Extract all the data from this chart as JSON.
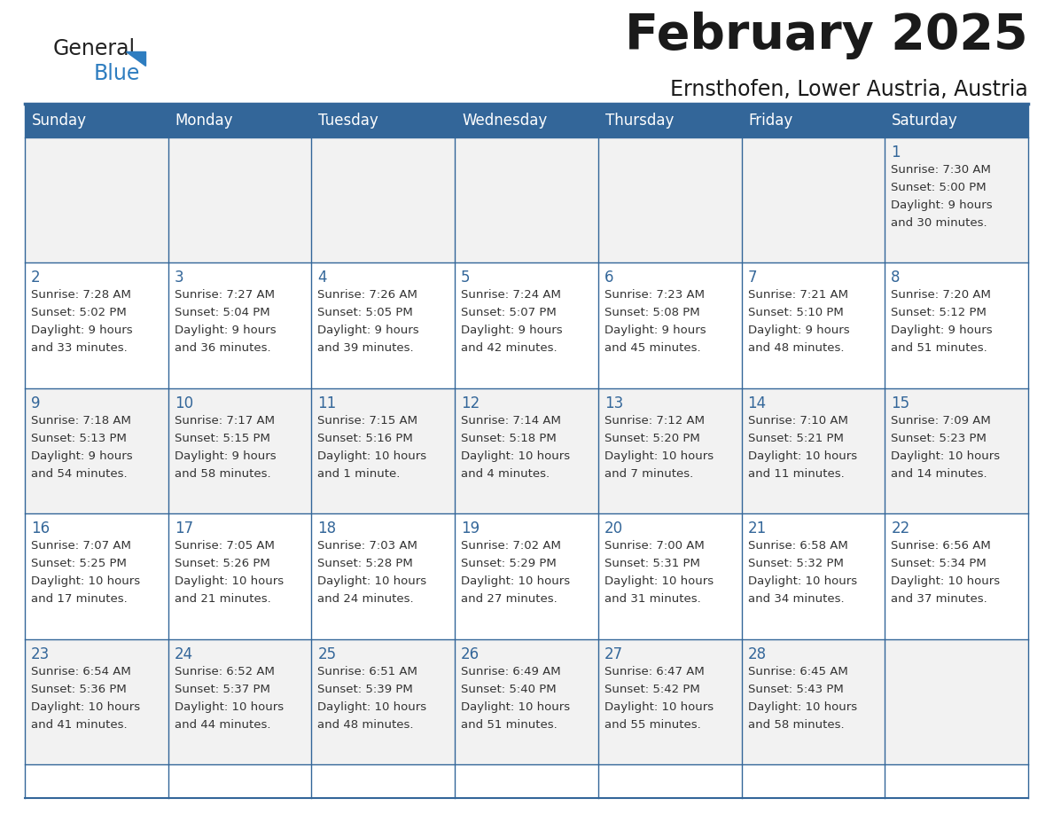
{
  "title": "February 2025",
  "subtitle": "Ernsthofen, Lower Austria, Austria",
  "days_of_week": [
    "Sunday",
    "Monday",
    "Tuesday",
    "Wednesday",
    "Thursday",
    "Friday",
    "Saturday"
  ],
  "header_bg": "#336699",
  "header_text_color": "#FFFFFF",
  "cell_bg_odd": "#F2F2F2",
  "cell_bg_even": "#FFFFFF",
  "border_color": "#336699",
  "text_color": "#333333",
  "day_number_color": "#336699",
  "logo_general_color": "#222222",
  "logo_blue_color": "#2E7DC0",
  "logo_triangle_color": "#2E7DC0",
  "calendar_data": {
    "1": {
      "sunrise": "7:30 AM",
      "sunset": "5:00 PM",
      "daylight": "9 hours and 30 minutes"
    },
    "2": {
      "sunrise": "7:28 AM",
      "sunset": "5:02 PM",
      "daylight": "9 hours and 33 minutes"
    },
    "3": {
      "sunrise": "7:27 AM",
      "sunset": "5:04 PM",
      "daylight": "9 hours and 36 minutes"
    },
    "4": {
      "sunrise": "7:26 AM",
      "sunset": "5:05 PM",
      "daylight": "9 hours and 39 minutes"
    },
    "5": {
      "sunrise": "7:24 AM",
      "sunset": "5:07 PM",
      "daylight": "9 hours and 42 minutes"
    },
    "6": {
      "sunrise": "7:23 AM",
      "sunset": "5:08 PM",
      "daylight": "9 hours and 45 minutes"
    },
    "7": {
      "sunrise": "7:21 AM",
      "sunset": "5:10 PM",
      "daylight": "9 hours and 48 minutes"
    },
    "8": {
      "sunrise": "7:20 AM",
      "sunset": "5:12 PM",
      "daylight": "9 hours and 51 minutes"
    },
    "9": {
      "sunrise": "7:18 AM",
      "sunset": "5:13 PM",
      "daylight": "9 hours and 54 minutes"
    },
    "10": {
      "sunrise": "7:17 AM",
      "sunset": "5:15 PM",
      "daylight": "9 hours and 58 minutes"
    },
    "11": {
      "sunrise": "7:15 AM",
      "sunset": "5:16 PM",
      "daylight": "10 hours and 1 minute"
    },
    "12": {
      "sunrise": "7:14 AM",
      "sunset": "5:18 PM",
      "daylight": "10 hours and 4 minutes"
    },
    "13": {
      "sunrise": "7:12 AM",
      "sunset": "5:20 PM",
      "daylight": "10 hours and 7 minutes"
    },
    "14": {
      "sunrise": "7:10 AM",
      "sunset": "5:21 PM",
      "daylight": "10 hours and 11 minutes"
    },
    "15": {
      "sunrise": "7:09 AM",
      "sunset": "5:23 PM",
      "daylight": "10 hours and 14 minutes"
    },
    "16": {
      "sunrise": "7:07 AM",
      "sunset": "5:25 PM",
      "daylight": "10 hours and 17 minutes"
    },
    "17": {
      "sunrise": "7:05 AM",
      "sunset": "5:26 PM",
      "daylight": "10 hours and 21 minutes"
    },
    "18": {
      "sunrise": "7:03 AM",
      "sunset": "5:28 PM",
      "daylight": "10 hours and 24 minutes"
    },
    "19": {
      "sunrise": "7:02 AM",
      "sunset": "5:29 PM",
      "daylight": "10 hours and 27 minutes"
    },
    "20": {
      "sunrise": "7:00 AM",
      "sunset": "5:31 PM",
      "daylight": "10 hours and 31 minutes"
    },
    "21": {
      "sunrise": "6:58 AM",
      "sunset": "5:32 PM",
      "daylight": "10 hours and 34 minutes"
    },
    "22": {
      "sunrise": "6:56 AM",
      "sunset": "5:34 PM",
      "daylight": "10 hours and 37 minutes"
    },
    "23": {
      "sunrise": "6:54 AM",
      "sunset": "5:36 PM",
      "daylight": "10 hours and 41 minutes"
    },
    "24": {
      "sunrise": "6:52 AM",
      "sunset": "5:37 PM",
      "daylight": "10 hours and 44 minutes"
    },
    "25": {
      "sunrise": "6:51 AM",
      "sunset": "5:39 PM",
      "daylight": "10 hours and 48 minutes"
    },
    "26": {
      "sunrise": "6:49 AM",
      "sunset": "5:40 PM",
      "daylight": "10 hours and 51 minutes"
    },
    "27": {
      "sunrise": "6:47 AM",
      "sunset": "5:42 PM",
      "daylight": "10 hours and 55 minutes"
    },
    "28": {
      "sunrise": "6:45 AM",
      "sunset": "5:43 PM",
      "daylight": "10 hours and 58 minutes"
    }
  },
  "weeks": [
    [
      null,
      null,
      null,
      null,
      null,
      null,
      1
    ],
    [
      2,
      3,
      4,
      5,
      6,
      7,
      8
    ],
    [
      9,
      10,
      11,
      12,
      13,
      14,
      15
    ],
    [
      16,
      17,
      18,
      19,
      20,
      21,
      22
    ],
    [
      23,
      24,
      25,
      26,
      27,
      28,
      null
    ]
  ]
}
